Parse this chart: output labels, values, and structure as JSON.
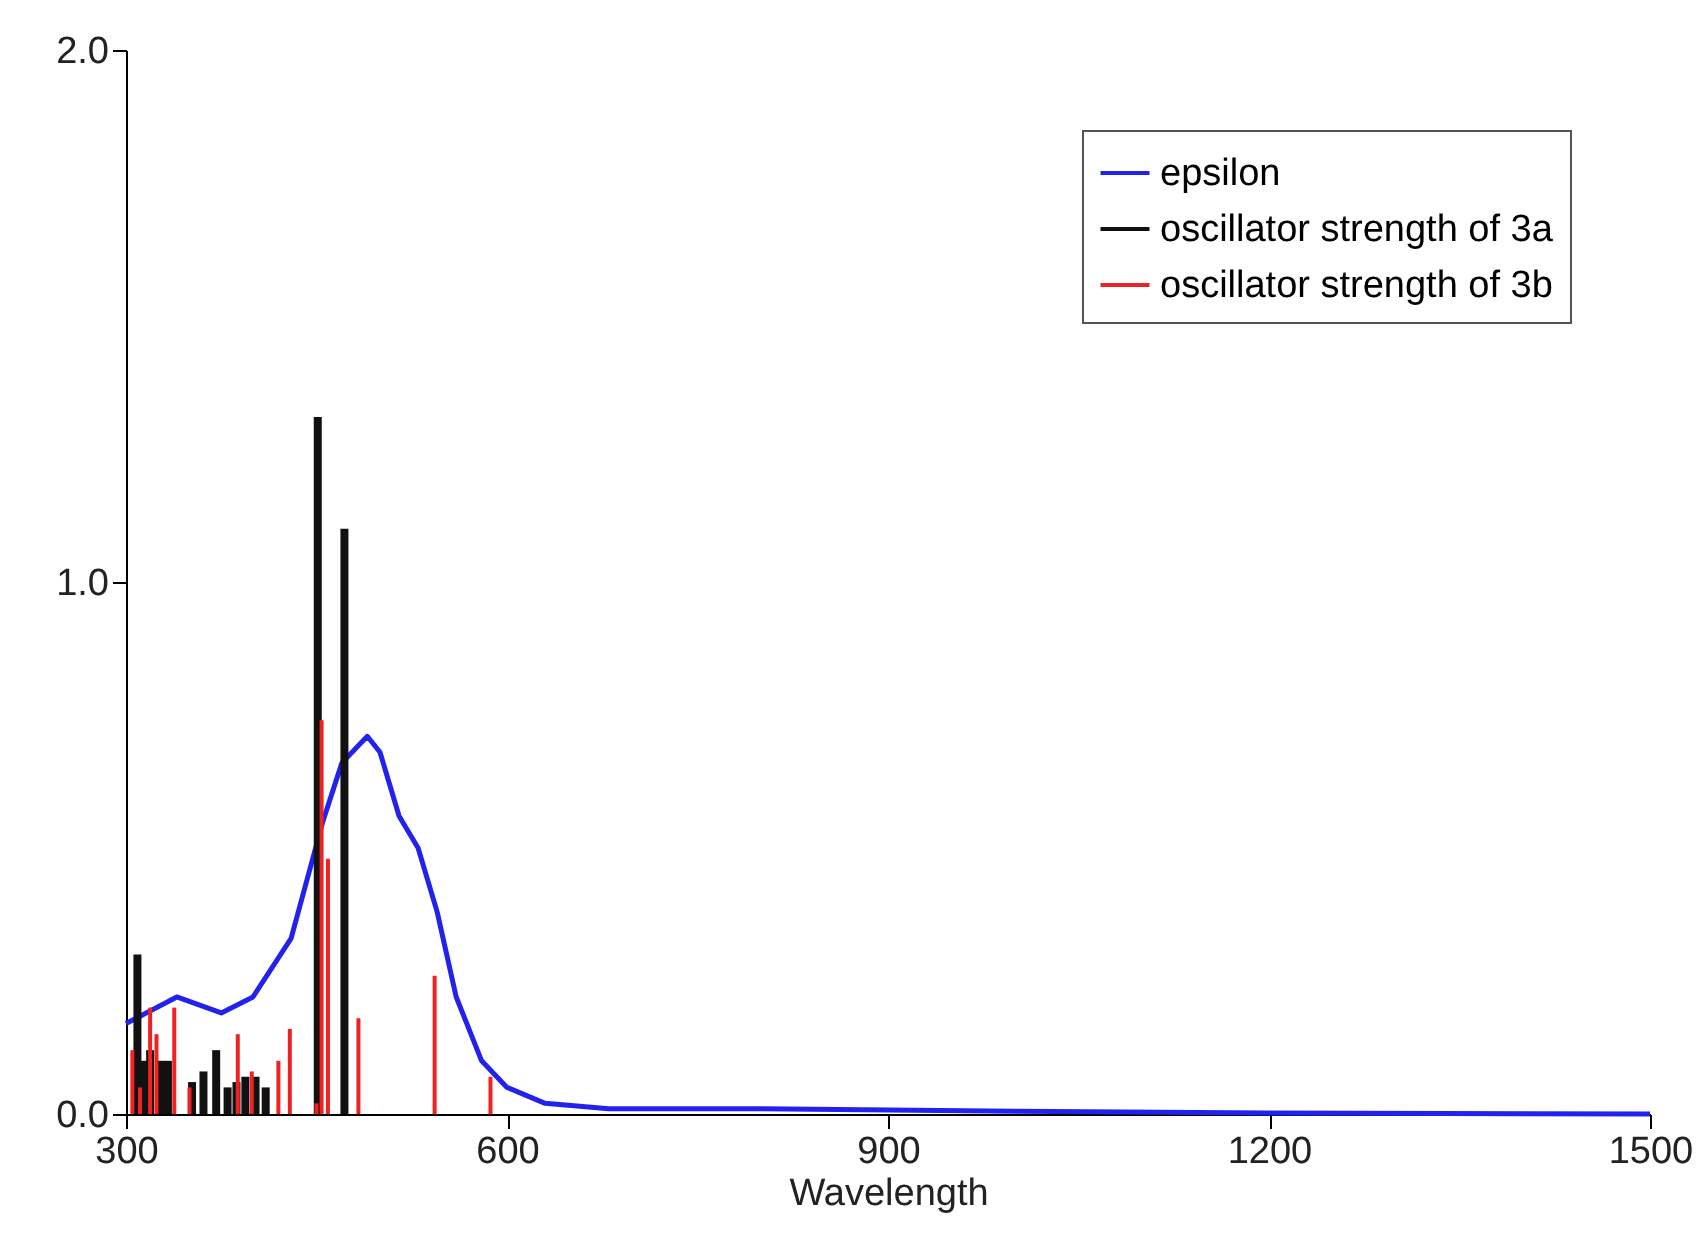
{
  "chart_data": {
    "type": "line",
    "xlabel": "Wavelength",
    "xlim": [
      300,
      1500
    ],
    "xticks": [
      300,
      600,
      900,
      1200,
      1500
    ],
    "ylim": [
      0,
      2
    ],
    "yticks": [
      {
        "value": 0,
        "label": "0.0"
      },
      {
        "value": 1,
        "label": "1.0"
      },
      {
        "value": 2,
        "label": "2.0"
      }
    ],
    "grid": false,
    "legend": "top right",
    "marker": "none",
    "series": [
      {
        "name": "epsilon",
        "color": "#2222ee",
        "x": [
          300,
          340,
          375,
          400,
          430,
          455,
          470,
          490,
          500,
          515,
          530,
          545,
          560,
          580,
          600,
          630,
          680,
          800,
          1000,
          1200,
          1500
        ],
        "values": [
          0.17,
          0.22,
          0.19,
          0.22,
          0.33,
          0.55,
          0.66,
          0.71,
          0.68,
          0.56,
          0.5,
          0.38,
          0.22,
          0.1,
          0.05,
          0.02,
          0.01,
          0.01,
          0.005,
          0.002,
          0
        ]
      },
      {
        "name": "oscillator strength of 3a",
        "type": "bar",
        "color": "#111111",
        "x": [
          309,
          314,
          319,
          327,
          333,
          352,
          361,
          371,
          380,
          387,
          394,
          402,
          410,
          451,
          472
        ],
        "values": [
          0.3,
          0.1,
          0.12,
          0.1,
          0.1,
          0.06,
          0.08,
          0.12,
          0.05,
          0.06,
          0.07,
          0.07,
          0.05,
          1.31,
          1.1
        ]
      },
      {
        "name": "oscillator strength of 3b",
        "type": "bar",
        "color": "#ee2222",
        "x": [
          305,
          311,
          319,
          324,
          338,
          350,
          388,
          399,
          420,
          429,
          450,
          454,
          459,
          483,
          543,
          587
        ],
        "values": [
          0.12,
          0.05,
          0.2,
          0.15,
          0.2,
          0.05,
          0.15,
          0.08,
          0.1,
          0.16,
          0.02,
          0.74,
          0.48,
          0.18,
          0.26,
          0.07
        ]
      }
    ]
  }
}
